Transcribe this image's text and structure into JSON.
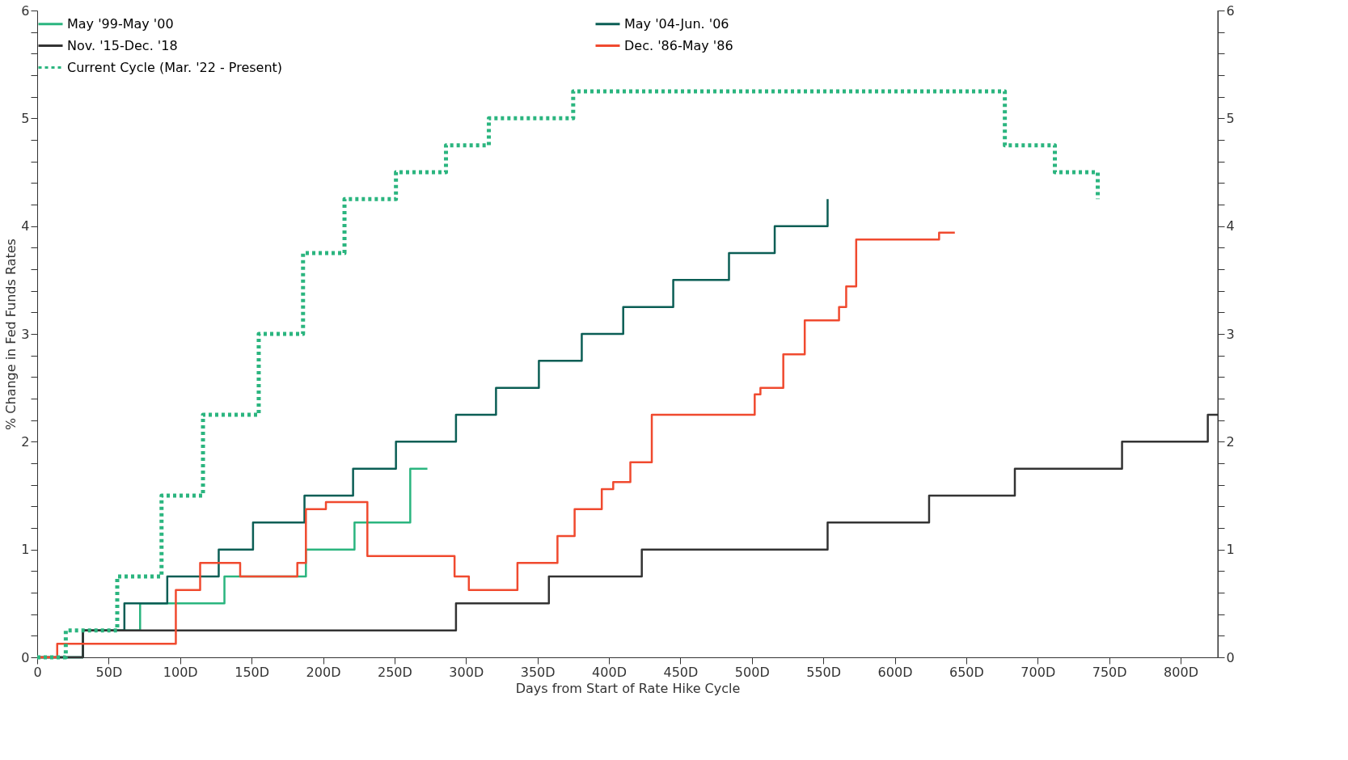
{
  "chart_data": {
    "type": "step",
    "xlabel": "Days from Start of Rate Hike Cycle",
    "ylabel": "% Change in Fed Funds Rates",
    "xlim": [
      0,
      826
    ],
    "xticks": [
      0,
      {
        "value": 50,
        "label": "50D"
      },
      {
        "value": 100,
        "label": "100D"
      },
      {
        "value": 150,
        "label": "150D"
      },
      {
        "value": 200,
        "label": "200D"
      },
      {
        "value": 250,
        "label": "250D"
      },
      {
        "value": 300,
        "label": "300D"
      },
      {
        "value": 350,
        "label": "350D"
      },
      {
        "value": 400,
        "label": "400D"
      },
      {
        "value": 450,
        "label": "450D"
      },
      {
        "value": 500,
        "label": "500D"
      },
      {
        "value": 550,
        "label": "550D"
      },
      {
        "value": 600,
        "label": "600D"
      },
      {
        "value": 650,
        "label": "650D"
      },
      {
        "value": 700,
        "label": "700D"
      },
      {
        "value": 750,
        "label": "750D"
      },
      {
        "value": 800,
        "label": "800D"
      }
    ],
    "ylim": [
      0,
      6
    ],
    "yticks": [
      0,
      {
        "value": 0.2,
        "label": null
      },
      {
        "value": 0.4,
        "label": null
      },
      {
        "value": 0.6,
        "label": null
      },
      {
        "value": 0.8,
        "label": null
      },
      1,
      {
        "value": 1.2,
        "label": null
      },
      {
        "value": 1.4,
        "label": null
      },
      {
        "value": 1.6,
        "label": null
      },
      {
        "value": 1.8,
        "label": null
      },
      2,
      {
        "value": 2.2,
        "label": null
      },
      {
        "value": 2.4,
        "label": null
      },
      {
        "value": 2.6,
        "label": null
      },
      {
        "value": 2.8,
        "label": null
      },
      3,
      {
        "value": 3.2,
        "label": null
      },
      {
        "value": 3.4,
        "label": null
      },
      {
        "value": 3.6,
        "label": null
      },
      {
        "value": 3.8,
        "label": null
      },
      4,
      {
        "value": 4.2,
        "label": null
      },
      {
        "value": 4.4,
        "label": null
      },
      {
        "value": 4.6,
        "label": null
      },
      {
        "value": 4.8,
        "label": null
      },
      5,
      {
        "value": 5.2,
        "label": null
      },
      {
        "value": 5.4,
        "label": null
      },
      {
        "value": 5.6,
        "label": null
      },
      {
        "value": 5.8,
        "label": null
      },
      6
    ],
    "y2lim": [
      0,
      6
    ],
    "y2ticks": [
      0,
      {
        "value": 0.2,
        "label": null
      },
      {
        "value": 0.4,
        "label": null
      },
      {
        "value": 0.6,
        "label": null
      },
      {
        "value": 0.8,
        "label": null
      },
      1,
      {
        "value": 1.2,
        "label": null
      },
      {
        "value": 1.4,
        "label": null
      },
      {
        "value": 1.6,
        "label": null
      },
      {
        "value": 1.8,
        "label": null
      },
      2,
      {
        "value": 2.2,
        "label": null
      },
      {
        "value": 2.4,
        "label": null
      },
      {
        "value": 2.6,
        "label": null
      },
      {
        "value": 2.8,
        "label": null
      },
      3,
      {
        "value": 3.2,
        "label": null
      },
      {
        "value": 3.4,
        "label": null
      },
      {
        "value": 3.6,
        "label": null
      },
      {
        "value": 3.8,
        "label": null
      },
      4,
      {
        "value": 4.2,
        "label": null
      },
      {
        "value": 4.4,
        "label": null
      },
      {
        "value": 4.6,
        "label": null
      },
      {
        "value": 4.8,
        "label": null
      },
      5,
      {
        "value": 5.2,
        "label": null
      },
      {
        "value": 5.4,
        "label": null
      },
      {
        "value": 5.6,
        "label": null
      },
      {
        "value": 5.8,
        "label": null
      },
      6
    ],
    "grid": false,
    "legend": "top left",
    "line_style": "solid",
    "series": [
      {
        "name": "May '99-May '00",
        "color": "#2bb57f",
        "x": [
          0,
          32,
          72,
          131,
          188,
          222,
          261,
          273
        ],
        "values": [
          0,
          0.25,
          0.5,
          0.75,
          1.0,
          1.25,
          1.75,
          1.75
        ]
      },
      {
        "name": "May '04-Jun. '06",
        "color": "#0b5e55",
        "x": [
          0,
          32,
          61,
          91,
          127,
          151,
          187,
          221,
          251,
          293,
          321,
          351,
          381,
          410,
          445,
          484,
          516,
          553
        ],
        "values": [
          0,
          0.25,
          0.5,
          0.75,
          1.0,
          1.25,
          1.5,
          1.75,
          2.0,
          2.25,
          2.5,
          2.75,
          3.0,
          3.25,
          3.5,
          3.75,
          4.0,
          4.25
        ]
      },
      {
        "name": "Nov. '15-Dec. '18",
        "color": "#333333",
        "x": [
          0,
          32,
          293,
          358,
          423,
          553,
          624,
          684,
          759,
          819,
          826
        ],
        "values": [
          0,
          0.25,
          0.5,
          0.75,
          1.0,
          1.25,
          1.5,
          1.75,
          2.0,
          2.25,
          2.25
        ]
      },
      {
        "name": "Dec. '86-May '86",
        "color": "#f04a2f",
        "x": [
          0,
          14,
          97,
          114,
          142,
          182,
          188,
          202,
          231,
          292,
          302,
          336,
          364,
          376,
          395,
          403,
          415,
          430,
          502,
          506,
          522,
          537,
          561,
          566,
          573,
          631,
          642
        ],
        "values": [
          0,
          0.125,
          0.625,
          0.875,
          0.75,
          0.875,
          1.375,
          1.44,
          0.94,
          0.75,
          0.625,
          0.875,
          1.125,
          1.375,
          1.56,
          1.625,
          1.81,
          2.25,
          2.44,
          2.5,
          2.81,
          3.125,
          3.25,
          3.44,
          3.875,
          3.94,
          3.94
        ]
      },
      {
        "name": "Current Cycle (Mar. '22 - Present)",
        "color": "#2bb57f",
        "line_style": "dotted",
        "x": [
          0,
          20,
          56,
          87,
          116,
          155,
          186,
          215,
          251,
          286,
          316,
          375,
          677,
          712,
          742
        ],
        "values": [
          0,
          0.25,
          0.75,
          1.5,
          2.25,
          3.0,
          3.75,
          4.25,
          4.5,
          4.75,
          5.0,
          5.25,
          4.75,
          4.5,
          4.25
        ]
      }
    ]
  }
}
